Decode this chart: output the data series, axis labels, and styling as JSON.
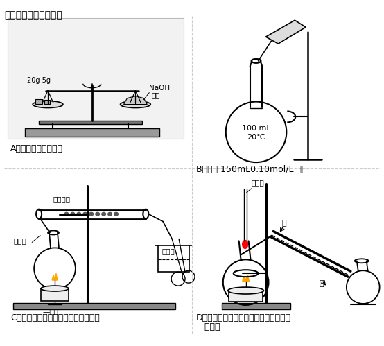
{
  "title": "下列实验操作正确的是",
  "title_fontsize": 11,
  "background_color": "#ffffff",
  "text_color": "#000000",
  "label_A": "A．称量氢氧化钠固体",
  "label_B": "B．配制 150mL0.10mol/L 盐酸",
  "label_C": "C．检验铁粉与水蒸气反应产生的氢气",
  "label_D1": "D．分离两种互溶但沸点相差较大的液体",
  "label_D2": "   混合物",
  "fig_width": 5.54,
  "fig_height": 4.99,
  "dpi": 100
}
